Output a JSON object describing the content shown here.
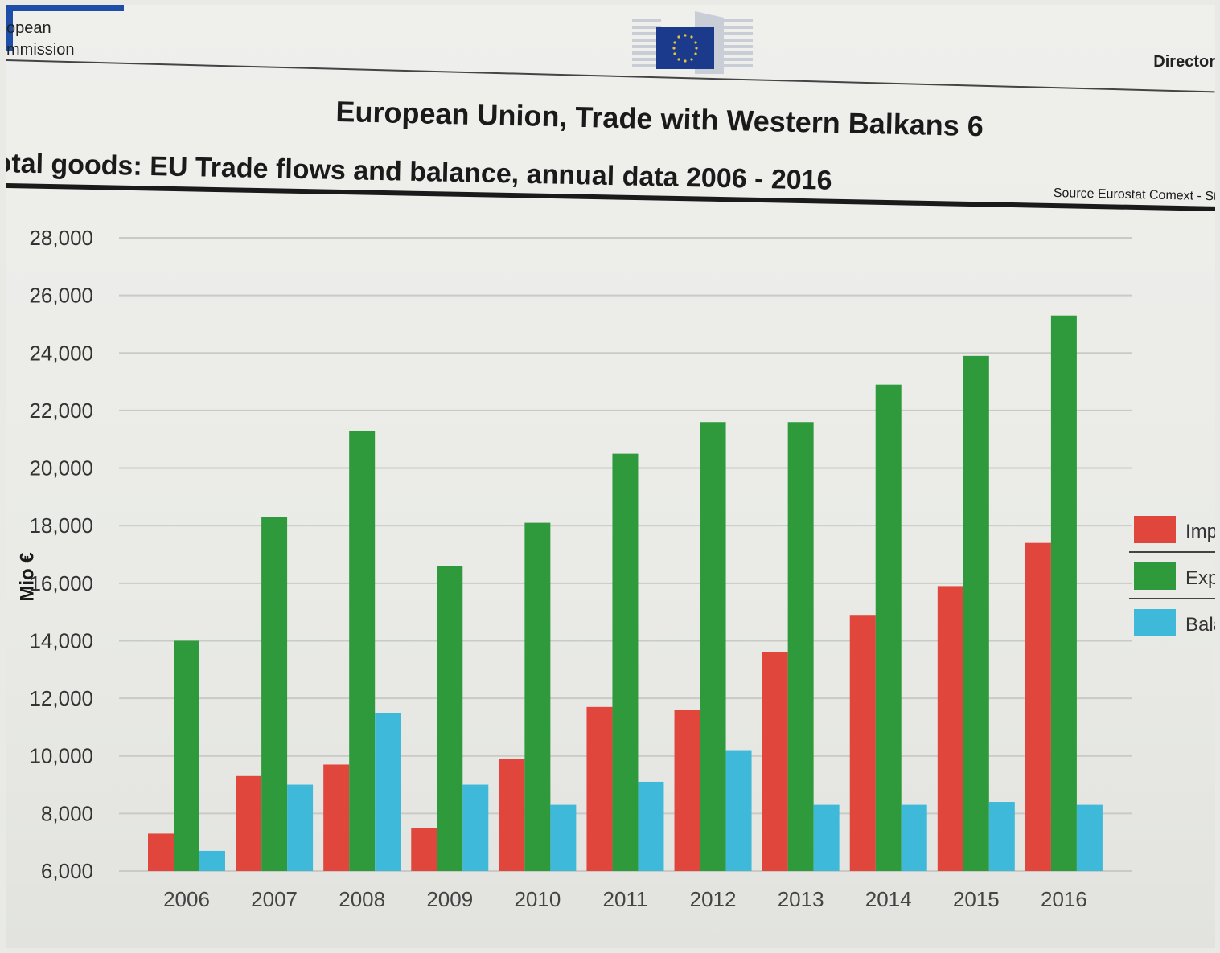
{
  "header": {
    "org_line1": "opean",
    "org_line2": "mmission",
    "director": "Director"
  },
  "chart_data": {
    "type": "bar",
    "title": "European Union, Trade with Western Balkans 6",
    "subtitle": "otal goods: EU Trade flows and balance, annual data 2006 - 2016",
    "source": "Source Eurostat Comext - St",
    "xlabel": "",
    "ylabel": "Mio €",
    "ylim": [
      6000,
      28000
    ],
    "yticks": [
      "6,000",
      "8,000",
      "10,000",
      "12,000",
      "14,000",
      "16,000",
      "18,000",
      "20,000",
      "22,000",
      "24,000",
      "26,000",
      "28,000"
    ],
    "grid": true,
    "legend_position": "right",
    "categories": [
      "2006",
      "2007",
      "2008",
      "2009",
      "2010",
      "2011",
      "2012",
      "2013",
      "2014",
      "2015",
      "2016"
    ],
    "series": [
      {
        "name": "Imp",
        "color": "#e0463c",
        "values": [
          7300,
          9300,
          9700,
          7500,
          9900,
          11700,
          11600,
          13600,
          14900,
          15900,
          17400
        ]
      },
      {
        "name": "Exp",
        "color": "#2f9a3c",
        "values": [
          14000,
          18300,
          21300,
          16600,
          18100,
          20500,
          21600,
          21600,
          22900,
          23900,
          25300
        ]
      },
      {
        "name": "Bala",
        "color": "#3fb9da",
        "values": [
          6700,
          9000,
          11500,
          9000,
          8300,
          9100,
          10200,
          8300,
          8300,
          8400,
          8300
        ]
      }
    ]
  }
}
